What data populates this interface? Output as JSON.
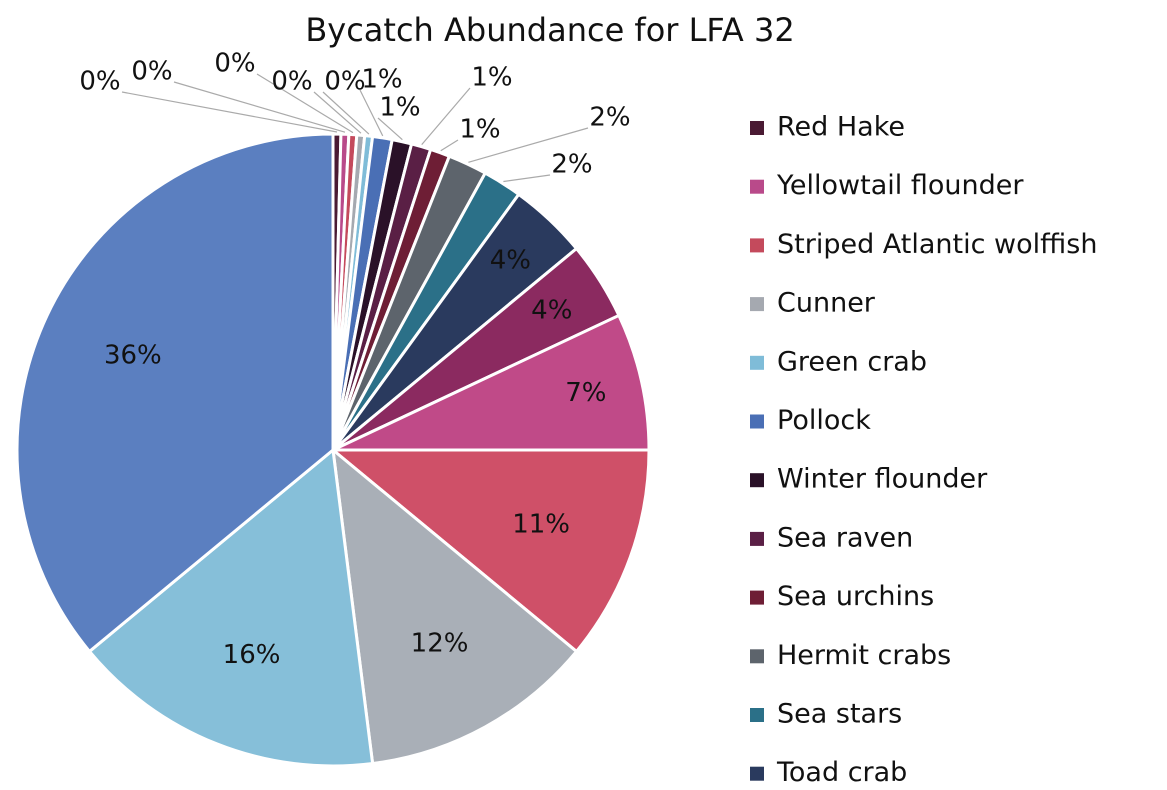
{
  "chart_data": {
    "type": "pie",
    "title": "Bycatch Abundance for LFA 32",
    "categories": [
      "Red Hake",
      "Yellowtail flounder",
      "Striped Atlantic wolffish",
      "Cunner",
      "Green crab",
      "Pollock",
      "Winter flounder",
      "Sea raven",
      "Sea urchins",
      "Hermit crabs",
      "Sea stars",
      "Toad crab",
      null,
      null,
      null,
      null,
      null,
      null
    ],
    "values": [
      0.4,
      0.4,
      0.4,
      0.4,
      0.4,
      1,
      1,
      1,
      1,
      2,
      2,
      4,
      4,
      7,
      11,
      12,
      16,
      36
    ],
    "value_labels": [
      "0%",
      "0%",
      "0%",
      "0%",
      "0%",
      "1%",
      "1%",
      "1%",
      "1%",
      "2%",
      "2%",
      "4%",
      "4%",
      "7%",
      "11%",
      "12%",
      "16%",
      "36%"
    ],
    "colors": [
      "#4a1a33",
      "#b94a8a",
      "#c44a5c",
      "#a5a9b0",
      "#7fbcd8",
      "#4a6fb5",
      "#2a1128",
      "#5a1f45",
      "#6e1e35",
      "#5d646c",
      "#2b7088",
      "#2a3a5e",
      "#8b2a60",
      "#c04a88",
      "#cf5068",
      "#a9afb7",
      "#86bfd9",
      "#5b7fc0"
    ],
    "legend": "right"
  }
}
